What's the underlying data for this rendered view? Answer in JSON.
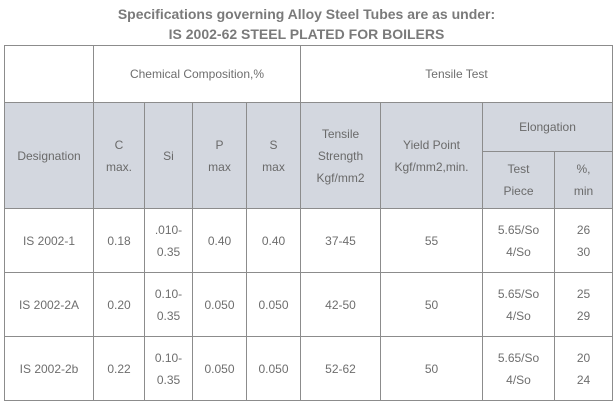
{
  "heading": {
    "line1": "Specifications governing Alloy Steel Tubes are as under:",
    "line2": "IS 2002-62 STEEL PLATED FOR BOILERS"
  },
  "table": {
    "group_headers": {
      "chemical": "Chemical Composition,%",
      "tensile": "Tensile Test",
      "elongation": "Elongation"
    },
    "columns": {
      "designation": "Designation",
      "c_line1": "C",
      "c_line2": "max.",
      "si": "Si",
      "p_line1": "P",
      "p_line2": "max",
      "s_line1": "S",
      "s_line2": "max",
      "ts_line1": "Tensile",
      "ts_line2": "Strength",
      "ts_line3": "Kgf/mm2",
      "yp_line1": "Yield Point",
      "yp_line2": "Kgf/mm2,min.",
      "tp_line1": "Test",
      "tp_line2": "Piece",
      "pct_line1": "%,",
      "pct_line2": "min"
    },
    "rows": [
      {
        "designation": "IS 2002-1",
        "c": "0.18",
        "si_line1": ".010-",
        "si_line2": "0.35",
        "p": "0.40",
        "s": "0.40",
        "tensile": "37-45",
        "yield": "55",
        "piece_line1": "5.65/So",
        "piece_line2": "4/So",
        "pct_line1": "26",
        "pct_line2": "30"
      },
      {
        "designation": "IS 2002-2A",
        "c": "0.20",
        "si_line1": "0.10-",
        "si_line2": "0.35",
        "p": "0.050",
        "s": "0.050",
        "tensile": "42-50",
        "yield": "50",
        "piece_line1": "5.65/So",
        "piece_line2": "4/So",
        "pct_line1": "25",
        "pct_line2": "29"
      },
      {
        "designation": "IS 2002-2b",
        "c": "0.22",
        "si_line1": "0.10-",
        "si_line2": "0.35",
        "p": "0.050",
        "s": "0.050",
        "tensile": "52-62",
        "yield": "50",
        "piece_line1": "5.65/So",
        "piece_line2": "4/So",
        "pct_line1": "20",
        "pct_line2": "24"
      }
    ]
  }
}
